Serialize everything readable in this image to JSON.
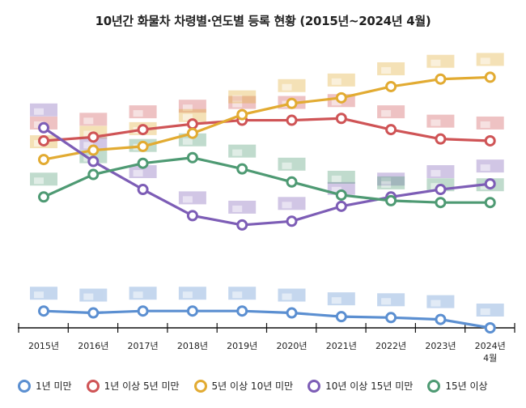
{
  "chart_data": {
    "type": "line",
    "title": "10년간 화물차 차령별·연도별 등록 현황 (2015년~2024년 4월)",
    "categories": [
      "2015년",
      "2016년",
      "2017년",
      "2018년",
      "2019년",
      "2020년",
      "2021년",
      "2022년",
      "2023년",
      "2024년 4월"
    ],
    "xlabel": "",
    "ylabel": "",
    "y_axis_shown": false,
    "grid": false,
    "legend_position": "bottom",
    "series": [
      {
        "name": "1년 미만",
        "color": "#5b8fd1",
        "values": [
          9,
          8,
          9,
          9,
          9,
          8,
          6,
          5.5,
          4.5,
          0
        ]
      },
      {
        "name": "1년 이상 5년 미만",
        "color": "#cf5456",
        "values": [
          100,
          102,
          106,
          109,
          111,
          111,
          112,
          106,
          101,
          100
        ]
      },
      {
        "name": "5년 이상 10년 미만",
        "color": "#e2ab32",
        "values": [
          90,
          95,
          97,
          104,
          114,
          120,
          123,
          129,
          133,
          134
        ]
      },
      {
        "name": "10년 이상 15년 미만",
        "color": "#7d5db6",
        "values": [
          107,
          89,
          74,
          60,
          55,
          57,
          65,
          70,
          74,
          77
        ]
      },
      {
        "name": "15년 이상",
        "color": "#4e9a73",
        "values": [
          70,
          82,
          88,
          91,
          85,
          78,
          71,
          68,
          67,
          67
        ]
      }
    ]
  }
}
